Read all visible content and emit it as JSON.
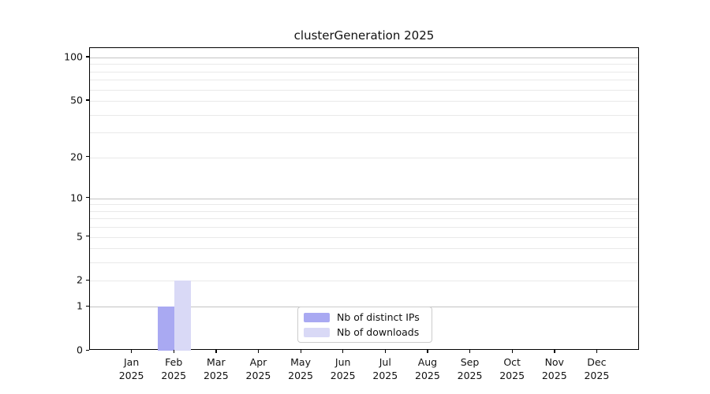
{
  "chart_data": {
    "type": "bar",
    "title": "clusterGeneration 2025",
    "categories": [
      {
        "month": "Jan",
        "year": "2025"
      },
      {
        "month": "Feb",
        "year": "2025"
      },
      {
        "month": "Mar",
        "year": "2025"
      },
      {
        "month": "Apr",
        "year": "2025"
      },
      {
        "month": "May",
        "year": "2025"
      },
      {
        "month": "Jun",
        "year": "2025"
      },
      {
        "month": "Jul",
        "year": "2025"
      },
      {
        "month": "Aug",
        "year": "2025"
      },
      {
        "month": "Sep",
        "year": "2025"
      },
      {
        "month": "Oct",
        "year": "2025"
      },
      {
        "month": "Nov",
        "year": "2025"
      },
      {
        "month": "Dec",
        "year": "2025"
      }
    ],
    "series": [
      {
        "name": "Nb of distinct IPs",
        "color": "#a9a9f2",
        "values": [
          0,
          1,
          0,
          0,
          0,
          0,
          0,
          0,
          0,
          0,
          0,
          0
        ]
      },
      {
        "name": "Nb of downloads",
        "color": "#d9d9f6",
        "values": [
          0,
          2,
          0,
          0,
          0,
          0,
          0,
          0,
          0,
          0,
          0,
          0
        ]
      }
    ],
    "y_axis": {
      "scale": "log1p",
      "tick_values": [
        0,
        1,
        2,
        5,
        10,
        20,
        50,
        100
      ],
      "max": 116,
      "major_gridlines": [
        1,
        10,
        100
      ],
      "minor_gridlines": [
        2,
        3,
        4,
        5,
        6,
        7,
        8,
        9,
        20,
        30,
        40,
        50,
        60,
        70,
        80,
        90
      ]
    },
    "xlabel": "",
    "ylabel": "",
    "grid": true,
    "legend": {
      "position": "lower center"
    }
  },
  "colors": {
    "spine": "#000000",
    "major_grid": "#c3c3c3",
    "minor_grid": "#e9e9e9",
    "background": "#ffffff"
  }
}
